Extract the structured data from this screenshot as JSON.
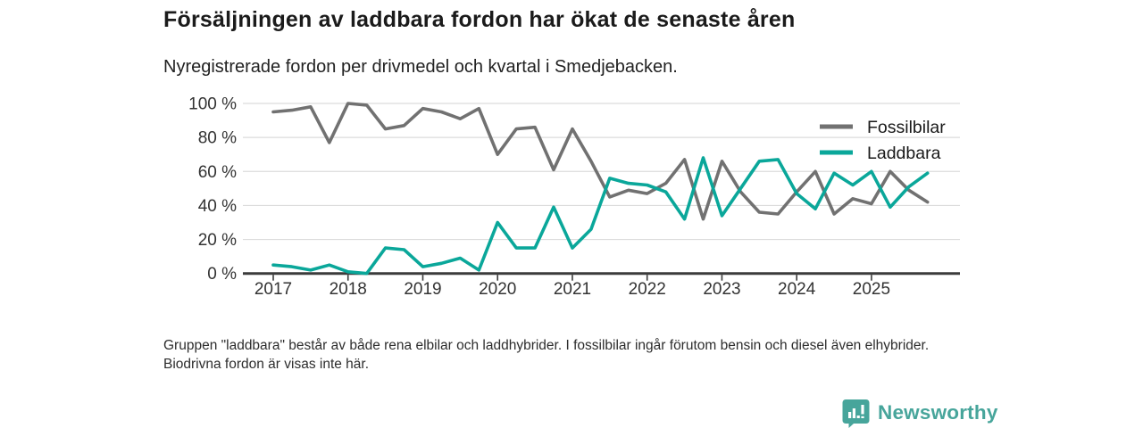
{
  "header": {
    "title": "Försäljningen av laddbara fordon har ökat de senaste åren",
    "subtitle": "Nyregistrerade fordon per drivmedel och kvartal i Smedjebacken."
  },
  "footer": {
    "note": "Gruppen \"laddbara\" består av både rena elbilar och laddhybrider. I fossilbilar ingår förutom bensin och diesel även elhybrider. Biodrivna fordon är visas inte här.",
    "brand": "Newsworthy"
  },
  "colors": {
    "fossil_line": "#717171",
    "laddbara_line": "#0aa79a",
    "brand_teal": "#47a59b",
    "grid": "#dcdcdc",
    "axis": "#3b3b3b",
    "tick_text": "#333333",
    "legend_text": "#1a1a1a"
  },
  "chart_data": {
    "type": "line",
    "title": "Försäljningen av laddbara fordon har ökat de senaste åren",
    "subtitle": "Nyregistrerade fordon per drivmedel och kvartal i Smedjebacken.",
    "x_unit": "kvartal",
    "x_start": "2017 Q1",
    "x_end": "2025 Q4",
    "x_tick_labels": [
      "2017",
      "2018",
      "2019",
      "2020",
      "2021",
      "2022",
      "2023",
      "2024",
      "2025"
    ],
    "y_tick_values": [
      0,
      20,
      40,
      60,
      80,
      100
    ],
    "y_tick_labels": [
      "0 %",
      "20 %",
      "40 %",
      "60 %",
      "80 %",
      "100 %"
    ],
    "ylim": [
      0,
      100
    ],
    "grid": true,
    "legend_position": "top-right",
    "series": [
      {
        "name": "Fossilbilar",
        "color": "#717171",
        "values": [
          95,
          96,
          98,
          77,
          100,
          99,
          85,
          87,
          97,
          95,
          91,
          97,
          70,
          85,
          86,
          61,
          85,
          66,
          45,
          49,
          47,
          53,
          67,
          32,
          66,
          48,
          36,
          35,
          48,
          60,
          35,
          44,
          41,
          60,
          49,
          42
        ]
      },
      {
        "name": "Laddbara",
        "color": "#0aa79a",
        "values": [
          5,
          4,
          2,
          5,
          1,
          0,
          15,
          14,
          4,
          6,
          9,
          2,
          30,
          15,
          15,
          39,
          15,
          26,
          56,
          53,
          52,
          48,
          32,
          68,
          34,
          50,
          66,
          67,
          47,
          38,
          59,
          52,
          60,
          39,
          51,
          59
        ]
      }
    ]
  }
}
